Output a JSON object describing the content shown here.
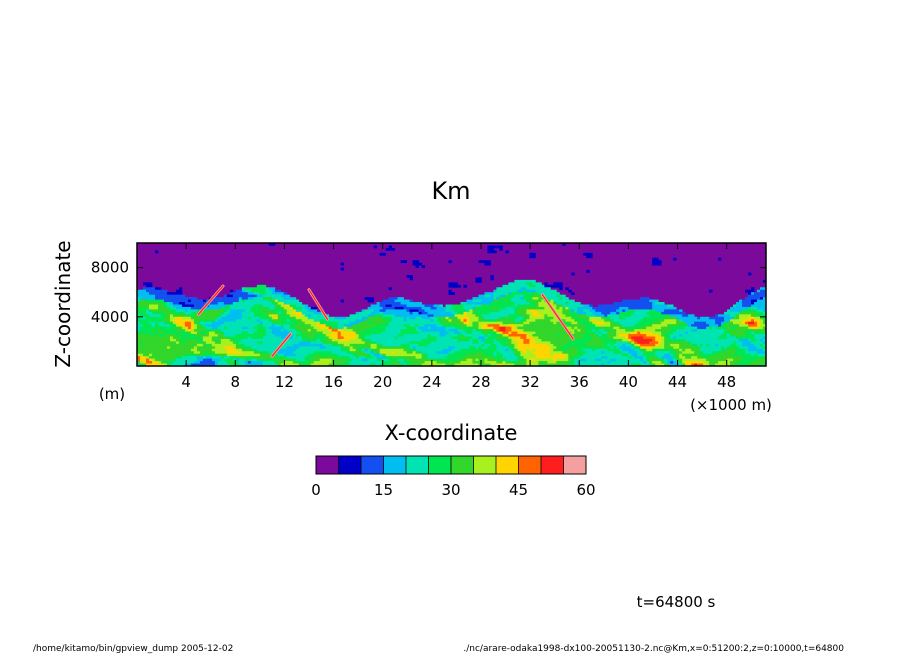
{
  "chart_data": {
    "type": "heatmap",
    "title": "Km",
    "xlabel": "X-coordinate",
    "ylabel": "Z-coordinate",
    "x_unit": "(×1000 m)",
    "y_unit": "(m)",
    "xlim": [
      0,
      51.2
    ],
    "ylim": [
      0,
      10000
    ],
    "x_ticks": [
      4,
      8,
      12,
      16,
      20,
      24,
      28,
      32,
      36,
      40,
      44,
      48
    ],
    "y_ticks": [
      4000,
      8000
    ],
    "colorbar": {
      "levels": [
        0,
        5,
        10,
        15,
        20,
        25,
        30,
        35,
        40,
        45,
        50,
        55,
        60
      ],
      "tick_labels": [
        0,
        15,
        30,
        45,
        60
      ],
      "colors": [
        "#7b0a9c",
        "#0000c8",
        "#1450f0",
        "#00bff0",
        "#00e4b4",
        "#00e650",
        "#33d62a",
        "#a8f01e",
        "#ffd400",
        "#ff6400",
        "#ff1e1e",
        "#f5a0a0"
      ]
    },
    "field_summary": {
      "upper_layer_value_range": [
        0,
        5
      ],
      "lower_mixed_layer_top_m": 5000,
      "max_value": 60
    }
  },
  "annotations": {
    "time": "t=64800 s",
    "footer_left": "/home/kitamo/bin/gpview_dump  2005-12-02",
    "footer_right": "./nc/arare-odaka1998-dx100-20051130-2.nc@Km,x=0:51200:2,z=0:10000,t=64800"
  }
}
